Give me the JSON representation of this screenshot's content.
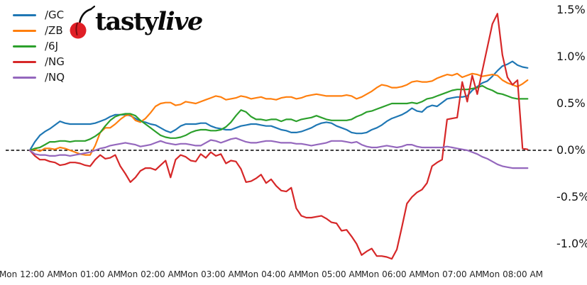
{
  "brand": {
    "name_regular": "tasty",
    "name_italic": "live",
    "cherry_color": "#e01f26",
    "text_color": "#0a0a0a"
  },
  "chart_data": {
    "type": "line",
    "title": "",
    "xlabel": "",
    "ylabel": "",
    "grid": false,
    "legend_position": "upper-left",
    "background_color": "#ffffff",
    "zero_line": {
      "value": 0.0,
      "style": "dashed",
      "color": "#000000"
    },
    "start_time": "Mon 12:00 AM",
    "interval_minutes": 5,
    "ylim": [
      -1.25,
      1.55
    ],
    "x_axis": {
      "tick_hours": [
        0,
        1,
        2,
        3,
        4,
        5,
        6,
        7,
        8
      ],
      "tick_labels": [
        "Mon 12:00 AM",
        "Mon 01:00 AM",
        "Mon 02:00 AM",
        "Mon 03:00 AM",
        "Mon 04:00 AM",
        "Mon 05:00 AM",
        "Mon 06:00 AM",
        "Mon 07:00 AM",
        "Mon 08:00 AM"
      ]
    },
    "y_axis": {
      "side": "right",
      "tick_values": [
        1.5,
        1.0,
        0.5,
        0.0,
        -0.5,
        -1.0
      ],
      "tick_labels": [
        "1.5%",
        "1.0%",
        "0.5%",
        "0.0%",
        "-0.5%",
        "-1.0%"
      ]
    },
    "series": [
      {
        "name": "/GC",
        "color": "#1f77b4",
        "values": [
          0.0,
          0.09,
          0.16,
          0.2,
          0.23,
          0.27,
          0.31,
          0.29,
          0.28,
          0.28,
          0.28,
          0.28,
          0.28,
          0.29,
          0.31,
          0.33,
          0.36,
          0.38,
          0.38,
          0.38,
          0.37,
          0.34,
          0.31,
          0.3,
          0.28,
          0.27,
          0.24,
          0.21,
          0.19,
          0.22,
          0.26,
          0.28,
          0.28,
          0.28,
          0.29,
          0.29,
          0.26,
          0.24,
          0.23,
          0.22,
          0.22,
          0.24,
          0.26,
          0.27,
          0.28,
          0.28,
          0.27,
          0.26,
          0.26,
          0.24,
          0.22,
          0.21,
          0.19,
          0.19,
          0.2,
          0.22,
          0.24,
          0.27,
          0.29,
          0.3,
          0.29,
          0.26,
          0.24,
          0.22,
          0.19,
          0.18,
          0.18,
          0.19,
          0.22,
          0.24,
          0.27,
          0.31,
          0.34,
          0.36,
          0.38,
          0.41,
          0.45,
          0.42,
          0.41,
          0.46,
          0.48,
          0.47,
          0.51,
          0.55,
          0.56,
          0.57,
          0.57,
          0.58,
          0.64,
          0.68,
          0.72,
          0.74,
          0.79,
          0.85,
          0.9,
          0.92,
          0.95,
          0.91,
          0.89,
          0.88
        ]
      },
      {
        "name": "/ZB",
        "color": "#ff7f0e",
        "values": [
          0.0,
          0.01,
          -0.01,
          0.02,
          0.02,
          0.01,
          0.03,
          0.02,
          0.0,
          -0.02,
          -0.04,
          -0.05,
          -0.05,
          0.05,
          0.19,
          0.24,
          0.24,
          0.28,
          0.33,
          0.37,
          0.38,
          0.32,
          0.3,
          0.34,
          0.4,
          0.47,
          0.5,
          0.51,
          0.51,
          0.48,
          0.49,
          0.52,
          0.51,
          0.5,
          0.52,
          0.54,
          0.56,
          0.58,
          0.57,
          0.54,
          0.55,
          0.56,
          0.58,
          0.57,
          0.55,
          0.56,
          0.57,
          0.55,
          0.55,
          0.54,
          0.56,
          0.57,
          0.57,
          0.55,
          0.56,
          0.58,
          0.59,
          0.6,
          0.59,
          0.58,
          0.58,
          0.58,
          0.58,
          0.59,
          0.58,
          0.55,
          0.57,
          0.6,
          0.63,
          0.67,
          0.7,
          0.69,
          0.67,
          0.67,
          0.68,
          0.7,
          0.73,
          0.74,
          0.73,
          0.73,
          0.74,
          0.77,
          0.79,
          0.81,
          0.8,
          0.82,
          0.78,
          0.8,
          0.82,
          0.81,
          0.79,
          0.8,
          0.81,
          0.8,
          0.75,
          0.72,
          0.7,
          0.68,
          0.71,
          0.75
        ]
      },
      {
        "name": "/6J",
        "color": "#2ca02c",
        "values": [
          0.0,
          0.02,
          0.03,
          0.06,
          0.09,
          0.09,
          0.1,
          0.1,
          0.09,
          0.1,
          0.1,
          0.1,
          0.12,
          0.15,
          0.19,
          0.26,
          0.32,
          0.36,
          0.38,
          0.39,
          0.39,
          0.37,
          0.32,
          0.28,
          0.24,
          0.2,
          0.16,
          0.14,
          0.13,
          0.13,
          0.14,
          0.16,
          0.19,
          0.21,
          0.22,
          0.22,
          0.21,
          0.21,
          0.22,
          0.25,
          0.3,
          0.37,
          0.43,
          0.41,
          0.36,
          0.33,
          0.33,
          0.32,
          0.33,
          0.33,
          0.31,
          0.33,
          0.33,
          0.31,
          0.33,
          0.34,
          0.35,
          0.37,
          0.35,
          0.33,
          0.32,
          0.32,
          0.32,
          0.32,
          0.33,
          0.36,
          0.38,
          0.41,
          0.42,
          0.44,
          0.46,
          0.48,
          0.5,
          0.5,
          0.5,
          0.5,
          0.51,
          0.5,
          0.52,
          0.55,
          0.56,
          0.58,
          0.6,
          0.62,
          0.64,
          0.65,
          0.65,
          0.65,
          0.66,
          0.67,
          0.69,
          0.66,
          0.64,
          0.61,
          0.6,
          0.58,
          0.56,
          0.55,
          0.55,
          0.55
        ]
      },
      {
        "name": "/NG",
        "color": "#d62728",
        "values": [
          0.0,
          -0.06,
          -0.1,
          -0.1,
          -0.12,
          -0.13,
          -0.16,
          -0.15,
          -0.13,
          -0.13,
          -0.14,
          -0.16,
          -0.17,
          -0.1,
          -0.05,
          -0.09,
          -0.08,
          -0.05,
          -0.17,
          -0.25,
          -0.34,
          -0.29,
          -0.22,
          -0.19,
          -0.19,
          -0.21,
          -0.16,
          -0.11,
          -0.29,
          -0.1,
          -0.05,
          -0.07,
          -0.11,
          -0.12,
          -0.04,
          -0.08,
          -0.02,
          -0.06,
          -0.04,
          -0.14,
          -0.11,
          -0.12,
          -0.2,
          -0.34,
          -0.33,
          -0.3,
          -0.26,
          -0.35,
          -0.31,
          -0.38,
          -0.43,
          -0.44,
          -0.4,
          -0.62,
          -0.7,
          -0.72,
          -0.72,
          -0.71,
          -0.7,
          -0.73,
          -0.77,
          -0.78,
          -0.86,
          -0.85,
          -0.92,
          -1.0,
          -1.12,
          -1.08,
          -1.05,
          -1.13,
          -1.13,
          -1.14,
          -1.16,
          -1.06,
          -0.82,
          -0.57,
          -0.5,
          -0.45,
          -0.42,
          -0.35,
          -0.17,
          -0.13,
          -0.1,
          0.33,
          0.34,
          0.35,
          0.73,
          0.52,
          0.8,
          0.6,
          0.85,
          1.1,
          1.35,
          1.46,
          1.02,
          0.78,
          0.7,
          0.75,
          0.02,
          0.01
        ]
      },
      {
        "name": "/NQ",
        "color": "#9467bd",
        "values": [
          0.0,
          -0.04,
          -0.05,
          -0.05,
          -0.06,
          -0.06,
          -0.05,
          -0.05,
          -0.06,
          -0.05,
          -0.04,
          -0.03,
          -0.02,
          0.0,
          0.02,
          0.03,
          0.05,
          0.06,
          0.07,
          0.08,
          0.07,
          0.06,
          0.04,
          0.05,
          0.06,
          0.08,
          0.1,
          0.08,
          0.07,
          0.06,
          0.07,
          0.07,
          0.06,
          0.05,
          0.05,
          0.08,
          0.11,
          0.1,
          0.08,
          0.1,
          0.12,
          0.13,
          0.11,
          0.09,
          0.08,
          0.08,
          0.09,
          0.1,
          0.1,
          0.09,
          0.08,
          0.08,
          0.08,
          0.07,
          0.07,
          0.06,
          0.05,
          0.06,
          0.07,
          0.08,
          0.1,
          0.1,
          0.1,
          0.09,
          0.08,
          0.09,
          0.06,
          0.04,
          0.03,
          0.03,
          0.04,
          0.05,
          0.04,
          0.03,
          0.04,
          0.06,
          0.06,
          0.04,
          0.03,
          0.03,
          0.03,
          0.03,
          0.03,
          0.04,
          0.03,
          0.02,
          0.01,
          0.0,
          -0.02,
          -0.04,
          -0.07,
          -0.09,
          -0.12,
          -0.15,
          -0.17,
          -0.18,
          -0.19,
          -0.19,
          -0.19,
          -0.19
        ]
      }
    ]
  }
}
